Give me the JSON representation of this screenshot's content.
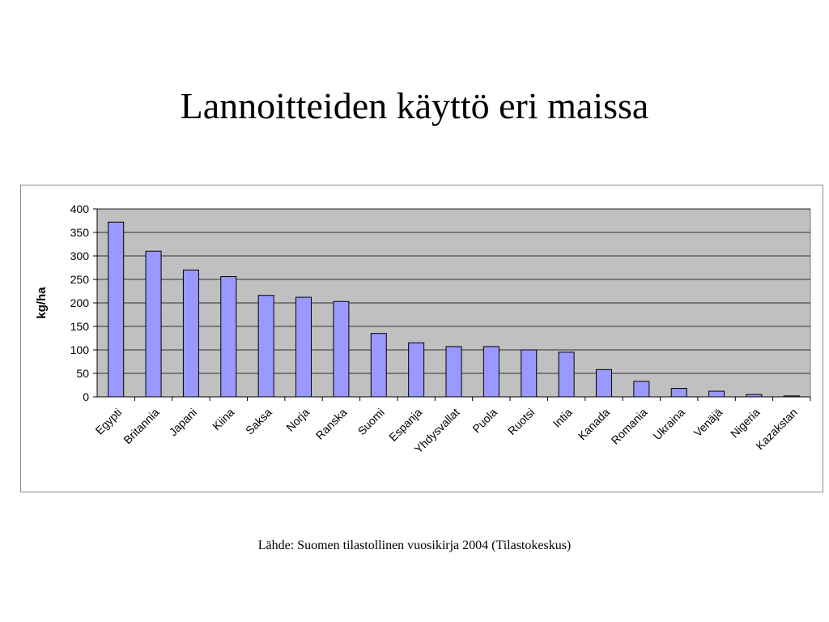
{
  "slide": {
    "title": "Lannoitteiden käyttö eri maissa",
    "source": "Lähde: Suomen tilastollinen vuosikirja 2004 (Tilastokeskus)"
  },
  "chart_data": {
    "type": "bar",
    "title": "",
    "xlabel": "",
    "ylabel": "kg/ha",
    "ylim": [
      0,
      400
    ],
    "yticks": [
      0,
      50,
      100,
      150,
      200,
      250,
      300,
      350,
      400
    ],
    "grid": true,
    "legend": "none",
    "categories": [
      "Egypti",
      "Britannia",
      "Japani",
      "Kiina",
      "Saksa",
      "Norja",
      "Ranska",
      "Suomi",
      "Espanja",
      "Yhdysvallat",
      "Puola",
      "Ruotsi",
      "Intia",
      "Kanada",
      "Romania",
      "Ukraina",
      "Venäjä",
      "Nigeria",
      "Kazakstan"
    ],
    "values": [
      372,
      310,
      270,
      256,
      216,
      212,
      203,
      135,
      115,
      107,
      107,
      100,
      95,
      58,
      33,
      18,
      12,
      5,
      2
    ],
    "colors": {
      "bar_fill": "#9999ff",
      "bar_stroke": "#000000",
      "plot_background": "#c0c0c0",
      "gridline": "#000000"
    }
  }
}
